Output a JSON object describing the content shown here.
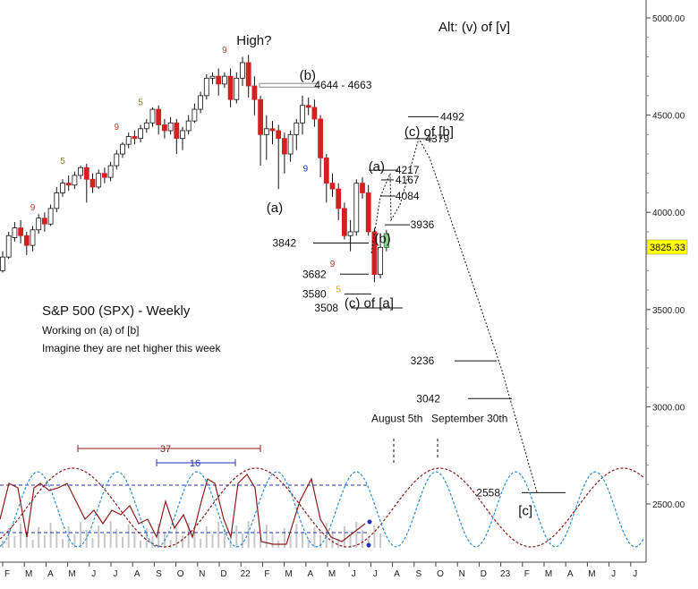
{
  "chart_data": {
    "type": "candlestick",
    "title": "S&P 500 (SPX) - Weekly",
    "subtitle_lines": [
      "Working on (a) of [b]",
      "Imagine they are net higher this week"
    ],
    "corner_label": "Alt: (v) of [v]",
    "current_price": "3825.33",
    "y_ticks": [
      "5000.00",
      "4500.00",
      "4000.00",
      "3500.00",
      "3000.00",
      "2500.00"
    ],
    "y_tick_values": [
      5000,
      4500,
      4000,
      3500,
      3000,
      2500
    ],
    "x_months": [
      "F",
      "M",
      "A",
      "M",
      "J",
      "J",
      "A",
      "S",
      "O",
      "N",
      "D",
      "22",
      "F",
      "M",
      "A",
      "M",
      "J",
      "J",
      "A",
      "S",
      "O",
      "N",
      "D",
      "23",
      "F",
      "M",
      "A",
      "M",
      "J",
      "J"
    ],
    "price_scale": {
      "p1": 5000,
      "p2": 2500
    },
    "candles": [
      [
        3700,
        3770,
        3690,
        3800
      ],
      [
        3770,
        3880,
        3760,
        3900
      ],
      [
        3870,
        3920,
        3850,
        3950
      ],
      [
        3920,
        3880,
        3840,
        3960
      ],
      [
        3880,
        3830,
        3780,
        3900
      ],
      [
        3830,
        3910,
        3800,
        3930
      ],
      [
        3910,
        3970,
        3890,
        3990
      ],
      [
        3970,
        3940,
        3900,
        4000
      ],
      [
        3940,
        4020,
        3930,
        4040
      ],
      [
        4020,
        4100,
        4000,
        4130
      ],
      [
        4100,
        4150,
        4080,
        4170
      ],
      [
        4150,
        4140,
        4110,
        4190
      ],
      [
        4140,
        4190,
        4120,
        4210
      ],
      [
        4190,
        4230,
        4170,
        4240
      ],
      [
        4230,
        4170,
        4050,
        4250
      ],
      [
        4170,
        4130,
        4100,
        4200
      ],
      [
        4130,
        4200,
        4120,
        4220
      ],
      [
        4200,
        4180,
        4150,
        4230
      ],
      [
        4180,
        4240,
        4160,
        4260
      ],
      [
        4240,
        4300,
        4220,
        4320
      ],
      [
        4300,
        4350,
        4280,
        4360
      ],
      [
        4350,
        4390,
        4330,
        4410
      ],
      [
        4390,
        4380,
        4350,
        4420
      ],
      [
        4380,
        4430,
        4360,
        4450
      ],
      [
        4430,
        4460,
        4410,
        4480
      ],
      [
        4460,
        4530,
        4440,
        4540
      ],
      [
        4530,
        4450,
        4400,
        4550
      ],
      [
        4450,
        4420,
        4380,
        4480
      ],
      [
        4420,
        4460,
        4400,
        4490
      ],
      [
        4460,
        4380,
        4300,
        4480
      ],
      [
        4380,
        4420,
        4320,
        4440
      ],
      [
        4420,
        4470,
        4400,
        4500
      ],
      [
        4470,
        4530,
        4460,
        4560
      ],
      [
        4530,
        4600,
        4510,
        4620
      ],
      [
        4600,
        4690,
        4580,
        4710
      ],
      [
        4690,
        4700,
        4660,
        4720
      ],
      [
        4700,
        4660,
        4600,
        4740
      ],
      [
        4660,
        4700,
        4640,
        4720
      ],
      [
        4700,
        4580,
        4540,
        4740
      ],
      [
        4580,
        4690,
        4560,
        4720
      ],
      [
        4690,
        4770,
        4650,
        4800
      ],
      [
        4770,
        4650,
        4590,
        4810
      ],
      [
        4650,
        4580,
        4500,
        4700
      ],
      [
        4580,
        4400,
        4240,
        4600
      ],
      [
        4400,
        4430,
        4270,
        4500
      ],
      [
        4430,
        4420,
        4350,
        4470
      ],
      [
        4420,
        4380,
        4120,
        4450
      ],
      [
        4380,
        4300,
        4200,
        4410
      ],
      [
        4300,
        4400,
        4260,
        4420
      ],
      [
        4400,
        4460,
        4320,
        4480
      ],
      [
        4460,
        4550,
        4400,
        4600
      ],
      [
        4550,
        4540,
        4500,
        4590
      ],
      [
        4540,
        4480,
        4440,
        4580
      ],
      [
        4480,
        4280,
        4180,
        4500
      ],
      [
        4280,
        4150,
        4050,
        4300
      ],
      [
        4150,
        4120,
        4080,
        4200
      ],
      [
        4120,
        4020,
        3960,
        4150
      ],
      [
        4020,
        3880,
        3860,
        4050
      ],
      [
        3880,
        3900,
        3800,
        3960
      ],
      [
        3900,
        4150,
        3880,
        4170
      ],
      [
        4150,
        4100,
        4070,
        4180
      ],
      [
        4100,
        3900,
        3880,
        4140
      ],
      [
        3900,
        3680,
        3640,
        3920
      ],
      [
        3680,
        3820,
        3660,
        3840
      ],
      [
        3820,
        3890,
        3800,
        3910
      ]
    ],
    "annotations": [
      {
        "text": "High?",
        "price": 4880,
        "bar": 39
      },
      {
        "text": "(b)",
        "price": 4700,
        "bar": 49.5
      },
      {
        "text": "(a)",
        "price": 4020,
        "bar": 44
      },
      {
        "text": "4644 - 4663",
        "price": 4654,
        "bar": 52
      },
      {
        "text": "(c) of [b]",
        "price": 4410,
        "bar": 67
      },
      {
        "text": "4492",
        "price": 4492,
        "bar": 73
      },
      {
        "text": "4379",
        "price": 4379,
        "bar": 70.5
      },
      {
        "text": "(a)",
        "price": 4230,
        "bar": 61
      },
      {
        "text": "4217",
        "price": 4217,
        "bar": 65.5
      },
      {
        "text": "4167",
        "price": 4167,
        "bar": 65.5
      },
      {
        "text": "4084",
        "price": 4084,
        "bar": 65.5
      },
      {
        "text": "(b)",
        "price": 3860,
        "bar": 62
      },
      {
        "text": "3936",
        "price": 3936,
        "bar": 68
      },
      {
        "text": "3842",
        "price": 3842,
        "bar": 45
      },
      {
        "text": "3682",
        "price": 3682,
        "bar": 50
      },
      {
        "text": "3580",
        "price": 3580,
        "bar": 50
      },
      {
        "text": "3508",
        "price": 3508,
        "bar": 52
      },
      {
        "text": "(c) of [a]",
        "price": 3530,
        "bar": 57
      },
      {
        "text": "3236",
        "price": 3236,
        "bar": 68
      },
      {
        "text": "3042",
        "price": 3042,
        "bar": 69
      },
      {
        "text": "2558",
        "price": 2558,
        "bar": 79
      },
      {
        "text": "[c]",
        "price": 2460,
        "bar": 86
      },
      {
        "text": "August 5th",
        "price": 2940,
        "bar": 61.5
      },
      {
        "text": "September 30th",
        "price": 2940,
        "bar": 71.5
      }
    ],
    "td_counts": [
      {
        "text": "9",
        "bar": 5,
        "price": 4010,
        "color": "#c0392b"
      },
      {
        "text": "5",
        "bar": 10,
        "price": 4250,
        "color": "#8a7a20"
      },
      {
        "text": "9",
        "bar": 19,
        "price": 4425,
        "color": "#c0392b"
      },
      {
        "text": "5",
        "bar": 23,
        "price": 4550,
        "color": "#8a7a20"
      },
      {
        "text": "9",
        "bar": 37,
        "price": 4820,
        "color": "#c0392b"
      },
      {
        "text": "9",
        "bar": 50.5,
        "price": 4210,
        "color": "#1f2fbf"
      },
      {
        "text": "9",
        "bar": 55,
        "price": 3720,
        "color": "#c0392b"
      },
      {
        "text": "5",
        "bar": 56,
        "price": 3590,
        "color": "#c9a227"
      }
    ],
    "cycle_labels": [
      {
        "text": "37",
        "color": "#8b1a1a"
      },
      {
        "text": "16",
        "color": "#1f2fbf"
      }
    ],
    "colors": {
      "up": "#ffffff",
      "down": "#d42020",
      "wick": "#111111",
      "cycle_red": "#8b1a1a",
      "cycle_blue": "#2d8fd8",
      "dashed_blue": "#1f2fbf",
      "highlight_box": "#ffff00"
    }
  }
}
